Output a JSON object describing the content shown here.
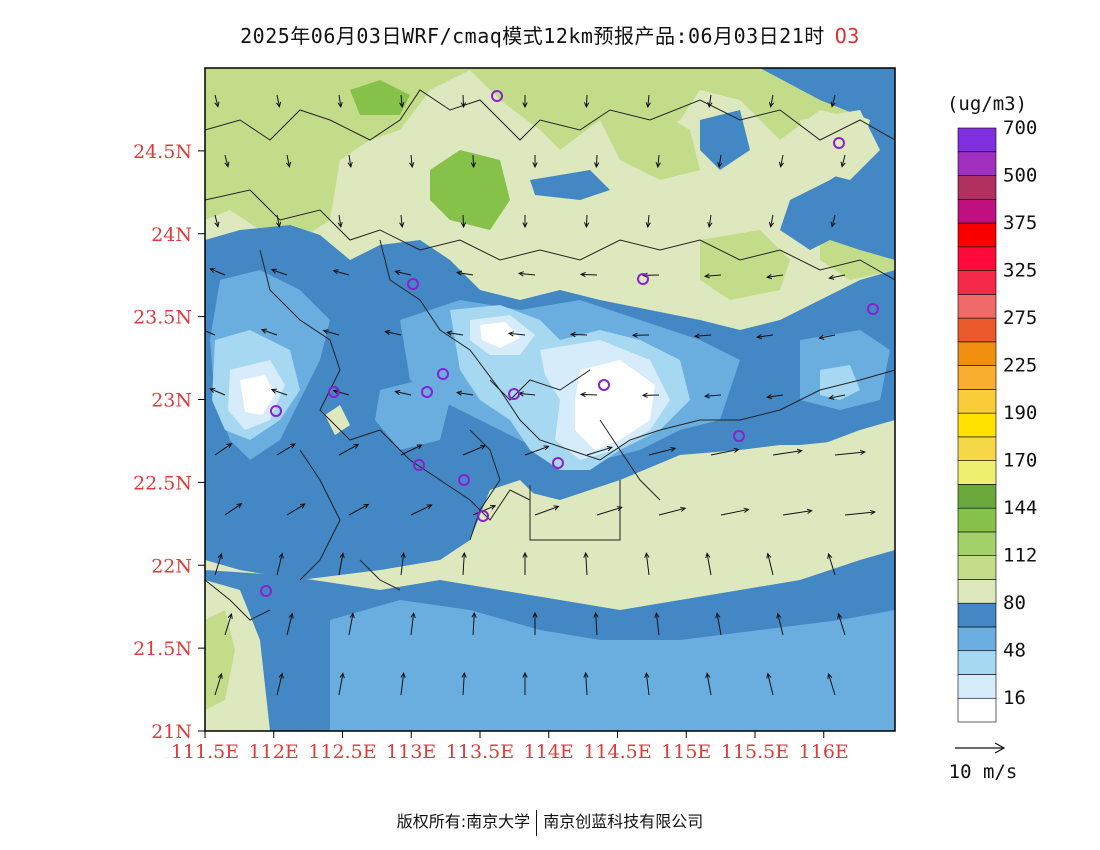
{
  "title": {
    "main": "2025年06月03日WRF/cmaq模式12km预报产品:06月03日21时",
    "species": "O3"
  },
  "map": {
    "lon_range": [
      111.5,
      116.5
    ],
    "lat_range": [
      21,
      25
    ],
    "lat_ticks": [
      "24.5N",
      "24N",
      "23.5N",
      "23N",
      "22.5N",
      "22N",
      "21.5N",
      "21N"
    ],
    "lon_ticks": [
      "111.5E",
      "112E",
      "112.5E",
      "113E",
      "113.5E",
      "114E",
      "114.5E",
      "115E",
      "115.5E",
      "116E"
    ]
  },
  "colorbar": {
    "unit": "(ug/m3)",
    "colors": [
      "#ffffff",
      "#d6ecfa",
      "#a6d8f2",
      "#6aaee0",
      "#4387c4",
      "#dde8be",
      "#c3dc8a",
      "#a4d06a",
      "#86c24a",
      "#6aa83c",
      "#f0f070",
      "#f5d848",
      "#ffe200",
      "#fbcc3a",
      "#f8ac30",
      "#f08f10",
      "#ea5a2c",
      "#f06a6a",
      "#f52a4a",
      "#ff0a3a",
      "#fa0000",
      "#c01080",
      "#b03060",
      "#a030c0",
      "#8030e0"
    ],
    "labels": [
      "16",
      "48",
      "80",
      "112",
      "144",
      "170",
      "190",
      "225",
      "275",
      "325",
      "375",
      "500",
      "700"
    ]
  },
  "wind": {
    "reference_label": "10 m/s"
  },
  "stations": {
    "color": "#8a20d0"
  },
  "footer": {
    "left": "版权所有:南京大学",
    "right": "南京创蓝科技有限公司"
  }
}
